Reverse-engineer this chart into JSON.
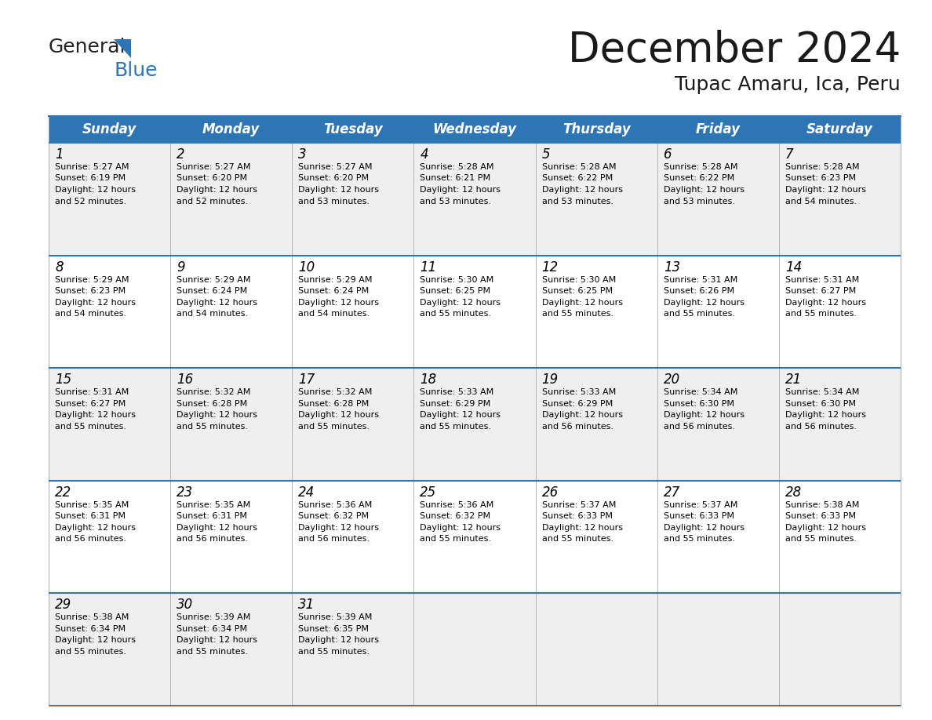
{
  "title": "December 2024",
  "subtitle": "Tupac Amaru, Ica, Peru",
  "header_color": "#2E75B6",
  "header_text_color": "#FFFFFF",
  "days_of_week": [
    "Sunday",
    "Monday",
    "Tuesday",
    "Wednesday",
    "Thursday",
    "Friday",
    "Saturday"
  ],
  "weeks": [
    [
      {
        "day": 1,
        "sunrise": "5:27 AM",
        "sunset": "6:19 PM",
        "daylight_hours": 12,
        "daylight_minutes": 52
      },
      {
        "day": 2,
        "sunrise": "5:27 AM",
        "sunset": "6:20 PM",
        "daylight_hours": 12,
        "daylight_minutes": 52
      },
      {
        "day": 3,
        "sunrise": "5:27 AM",
        "sunset": "6:20 PM",
        "daylight_hours": 12,
        "daylight_minutes": 53
      },
      {
        "day": 4,
        "sunrise": "5:28 AM",
        "sunset": "6:21 PM",
        "daylight_hours": 12,
        "daylight_minutes": 53
      },
      {
        "day": 5,
        "sunrise": "5:28 AM",
        "sunset": "6:22 PM",
        "daylight_hours": 12,
        "daylight_minutes": 53
      },
      {
        "day": 6,
        "sunrise": "5:28 AM",
        "sunset": "6:22 PM",
        "daylight_hours": 12,
        "daylight_minutes": 53
      },
      {
        "day": 7,
        "sunrise": "5:28 AM",
        "sunset": "6:23 PM",
        "daylight_hours": 12,
        "daylight_minutes": 54
      }
    ],
    [
      {
        "day": 8,
        "sunrise": "5:29 AM",
        "sunset": "6:23 PM",
        "daylight_hours": 12,
        "daylight_minutes": 54
      },
      {
        "day": 9,
        "sunrise": "5:29 AM",
        "sunset": "6:24 PM",
        "daylight_hours": 12,
        "daylight_minutes": 54
      },
      {
        "day": 10,
        "sunrise": "5:29 AM",
        "sunset": "6:24 PM",
        "daylight_hours": 12,
        "daylight_minutes": 54
      },
      {
        "day": 11,
        "sunrise": "5:30 AM",
        "sunset": "6:25 PM",
        "daylight_hours": 12,
        "daylight_minutes": 55
      },
      {
        "day": 12,
        "sunrise": "5:30 AM",
        "sunset": "6:25 PM",
        "daylight_hours": 12,
        "daylight_minutes": 55
      },
      {
        "day": 13,
        "sunrise": "5:31 AM",
        "sunset": "6:26 PM",
        "daylight_hours": 12,
        "daylight_minutes": 55
      },
      {
        "day": 14,
        "sunrise": "5:31 AM",
        "sunset": "6:27 PM",
        "daylight_hours": 12,
        "daylight_minutes": 55
      }
    ],
    [
      {
        "day": 15,
        "sunrise": "5:31 AM",
        "sunset": "6:27 PM",
        "daylight_hours": 12,
        "daylight_minutes": 55
      },
      {
        "day": 16,
        "sunrise": "5:32 AM",
        "sunset": "6:28 PM",
        "daylight_hours": 12,
        "daylight_minutes": 55
      },
      {
        "day": 17,
        "sunrise": "5:32 AM",
        "sunset": "6:28 PM",
        "daylight_hours": 12,
        "daylight_minutes": 55
      },
      {
        "day": 18,
        "sunrise": "5:33 AM",
        "sunset": "6:29 PM",
        "daylight_hours": 12,
        "daylight_minutes": 55
      },
      {
        "day": 19,
        "sunrise": "5:33 AM",
        "sunset": "6:29 PM",
        "daylight_hours": 12,
        "daylight_minutes": 56
      },
      {
        "day": 20,
        "sunrise": "5:34 AM",
        "sunset": "6:30 PM",
        "daylight_hours": 12,
        "daylight_minutes": 56
      },
      {
        "day": 21,
        "sunrise": "5:34 AM",
        "sunset": "6:30 PM",
        "daylight_hours": 12,
        "daylight_minutes": 56
      }
    ],
    [
      {
        "day": 22,
        "sunrise": "5:35 AM",
        "sunset": "6:31 PM",
        "daylight_hours": 12,
        "daylight_minutes": 56
      },
      {
        "day": 23,
        "sunrise": "5:35 AM",
        "sunset": "6:31 PM",
        "daylight_hours": 12,
        "daylight_minutes": 56
      },
      {
        "day": 24,
        "sunrise": "5:36 AM",
        "sunset": "6:32 PM",
        "daylight_hours": 12,
        "daylight_minutes": 56
      },
      {
        "day": 25,
        "sunrise": "5:36 AM",
        "sunset": "6:32 PM",
        "daylight_hours": 12,
        "daylight_minutes": 55
      },
      {
        "day": 26,
        "sunrise": "5:37 AM",
        "sunset": "6:33 PM",
        "daylight_hours": 12,
        "daylight_minutes": 55
      },
      {
        "day": 27,
        "sunrise": "5:37 AM",
        "sunset": "6:33 PM",
        "daylight_hours": 12,
        "daylight_minutes": 55
      },
      {
        "day": 28,
        "sunrise": "5:38 AM",
        "sunset": "6:33 PM",
        "daylight_hours": 12,
        "daylight_minutes": 55
      }
    ],
    [
      {
        "day": 29,
        "sunrise": "5:38 AM",
        "sunset": "6:34 PM",
        "daylight_hours": 12,
        "daylight_minutes": 55
      },
      {
        "day": 30,
        "sunrise": "5:39 AM",
        "sunset": "6:34 PM",
        "daylight_hours": 12,
        "daylight_minutes": 55
      },
      {
        "day": 31,
        "sunrise": "5:39 AM",
        "sunset": "6:35 PM",
        "daylight_hours": 12,
        "daylight_minutes": 55
      },
      null,
      null,
      null,
      null
    ]
  ],
  "bg_color": "#FFFFFF",
  "cell_bg_even": "#EFEFEF",
  "cell_bg_odd": "#FFFFFF",
  "border_color": "#2E75B6",
  "row_line_color": "#2E75B6",
  "col_line_color": "#AAAAAA",
  "text_color": "#000000",
  "title_fontsize": 38,
  "subtitle_fontsize": 18,
  "header_fontsize": 12,
  "day_num_fontsize": 12,
  "cell_text_fontsize": 8
}
